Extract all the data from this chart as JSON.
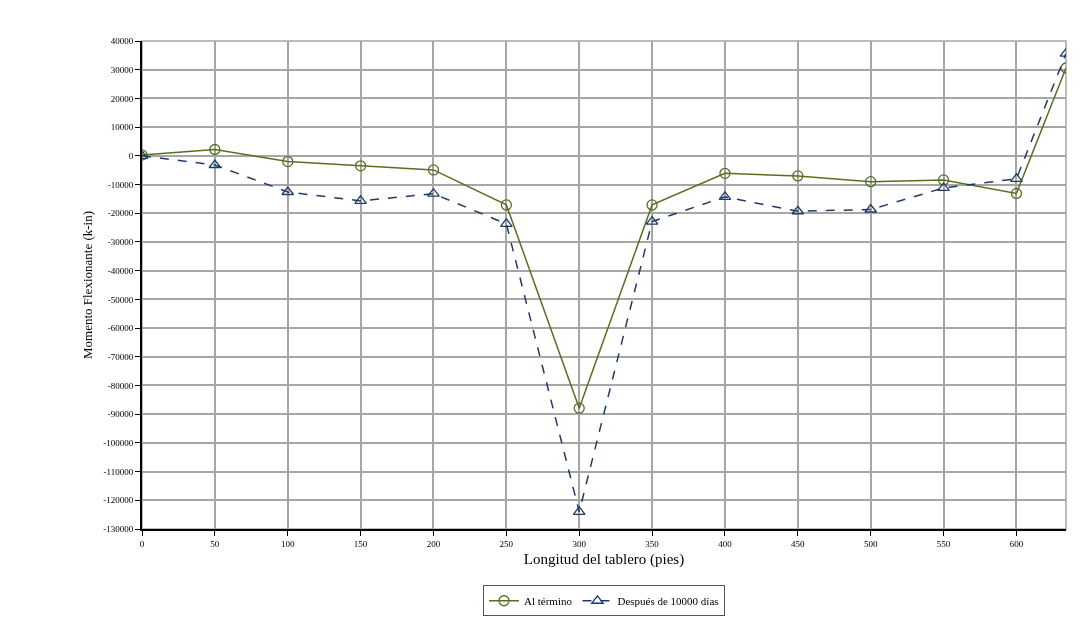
{
  "chart_data": {
    "type": "line",
    "xlabel": "Longitud del tablero (pies)",
    "ylabel": "Momento Flexionante (k-in)",
    "x": [
      0,
      50,
      100,
      150,
      200,
      250,
      300,
      350,
      400,
      450,
      500,
      550,
      600,
      634
    ],
    "series": [
      {
        "name": "Al término",
        "color": "#5a6e23",
        "marker": "circle",
        "line_style": "solid",
        "values": [
          300,
          2200,
          -2000,
          -3500,
          -4900,
          -17100,
          -87900,
          -17100,
          -6100,
          -7000,
          -9000,
          -8400,
          -13100,
          30600
        ]
      },
      {
        "name": "Después de 10000 días",
        "color": "#1f3b6b",
        "marker": "triangle",
        "line_style": "dashed",
        "values": [
          0,
          -3200,
          -12600,
          -15700,
          -13200,
          -23700,
          -124000,
          -22900,
          -14300,
          -19300,
          -18700,
          -11200,
          -8000,
          35600
        ]
      }
    ],
    "xlim": [
      0,
      634
    ],
    "xticks": [
      0,
      50,
      100,
      150,
      200,
      250,
      300,
      350,
      400,
      450,
      500,
      550,
      600
    ],
    "ylim": [
      -130000,
      40000
    ],
    "yticks": [
      -130000,
      -120000,
      -110000,
      -100000,
      -90000,
      -80000,
      -70000,
      -60000,
      -50000,
      -40000,
      -30000,
      -20000,
      -10000,
      0,
      10000,
      20000,
      30000,
      40000
    ],
    "grid": true,
    "legend": "bottom"
  }
}
